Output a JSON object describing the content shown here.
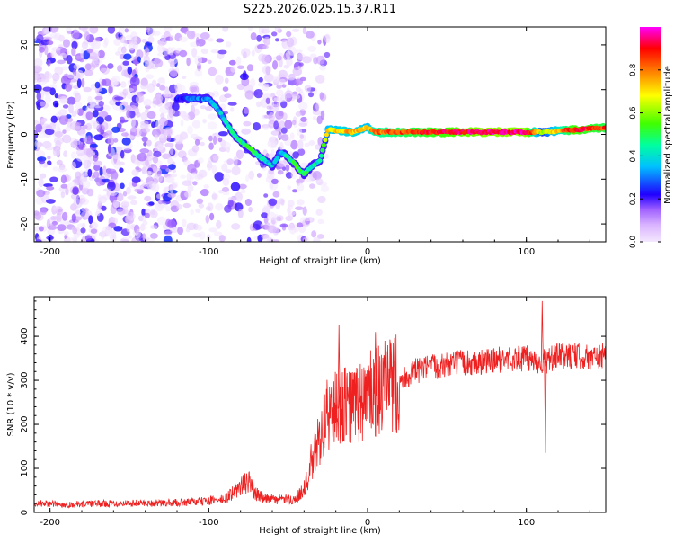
{
  "title": "S225.2026.025.15.37.R11",
  "chart_data": [
    {
      "type": "heatmap",
      "panel": "spectrogram",
      "title": "S225.2026.025.15.37.R11",
      "xlabel": "Height of straight line (km)",
      "ylabel": "Frequency (Hz)",
      "xlim": [
        -210,
        150
      ],
      "ylim": [
        -24,
        24
      ],
      "xticks": [
        -200,
        -100,
        0,
        100
      ],
      "yticks": [
        -20,
        -10,
        0,
        10,
        20
      ],
      "colorbar": {
        "label": "Normalized spectral amplitude",
        "range": [
          0,
          1
        ],
        "ticks": [
          "0.0",
          "0.2",
          "0.4",
          "0.6",
          "0.8"
        ],
        "colors": [
          "#f4e8ff",
          "#c98bff",
          "#8a2be2",
          "#0000ff",
          "#00ffff",
          "#00ff00",
          "#ffff00",
          "#ff0000",
          "#ff00ff"
        ]
      },
      "signal_track": [
        {
          "x": -120,
          "f": 8,
          "amp": 0.25
        },
        {
          "x": -100,
          "f": 8,
          "amp": 0.3
        },
        {
          "x": -95,
          "f": 6,
          "amp": 0.35
        },
        {
          "x": -88,
          "f": 2,
          "amp": 0.4
        },
        {
          "x": -82,
          "f": -1,
          "amp": 0.45
        },
        {
          "x": -75,
          "f": -3,
          "amp": 0.5
        },
        {
          "x": -68,
          "f": -5,
          "amp": 0.45
        },
        {
          "x": -60,
          "f": -7,
          "amp": 0.35
        },
        {
          "x": -55,
          "f": -4,
          "amp": 0.3
        },
        {
          "x": -50,
          "f": -5,
          "amp": 0.45
        },
        {
          "x": -45,
          "f": -7,
          "amp": 0.5
        },
        {
          "x": -40,
          "f": -9,
          "amp": 0.5
        },
        {
          "x": -35,
          "f": -7,
          "amp": 0.45
        },
        {
          "x": -30,
          "f": -6,
          "amp": 0.4
        },
        {
          "x": -25,
          "f": 1,
          "amp": 0.7
        },
        {
          "x": -10,
          "f": 0.5,
          "amp": 0.75
        },
        {
          "x": 0,
          "f": 1.5,
          "amp": 0.7
        },
        {
          "x": 5,
          "f": 0.5,
          "amp": 0.8
        },
        {
          "x": 25,
          "f": 0.5,
          "amp": 0.85
        },
        {
          "x": 50,
          "f": 0.5,
          "amp": 0.9
        },
        {
          "x": 75,
          "f": 0.5,
          "amp": 0.95
        },
        {
          "x": 100,
          "f": 0.5,
          "amp": 0.95
        },
        {
          "x": 110,
          "f": 0.5,
          "amp": 0.6
        },
        {
          "x": 130,
          "f": 1,
          "amp": 0.9
        },
        {
          "x": 150,
          "f": 1.5,
          "amp": 0.85
        }
      ]
    },
    {
      "type": "line",
      "panel": "snr",
      "xlabel": "Height of straight line (km)",
      "ylabel": "SNR (10 * v/v)",
      "xlim": [
        -210,
        150
      ],
      "ylim": [
        0,
        490
      ],
      "xticks": [
        -200,
        -100,
        0,
        100
      ],
      "yticks": [
        0,
        100,
        200,
        300,
        400
      ],
      "series": [
        {
          "name": "SNR",
          "color": "#ee2020",
          "points": [
            [
              -210,
              18
            ],
            [
              -190,
              15
            ],
            [
              -170,
              17
            ],
            [
              -150,
              18
            ],
            [
              -130,
              18
            ],
            [
              -110,
              20
            ],
            [
              -90,
              25
            ],
            [
              -80,
              50
            ],
            [
              -75,
              60
            ],
            [
              -70,
              35
            ],
            [
              -60,
              25
            ],
            [
              -45,
              25
            ],
            [
              -38,
              60
            ],
            [
              -32,
              150
            ],
            [
              -28,
              200
            ],
            [
              -25,
              220
            ],
            [
              -22,
              230
            ],
            [
              -15,
              240
            ],
            [
              -5,
              250
            ],
            [
              5,
              270
            ],
            [
              12,
              280
            ],
            [
              20,
              300
            ],
            [
              30,
              320
            ],
            [
              40,
              330
            ],
            [
              50,
              335
            ],
            [
              60,
              340
            ],
            [
              70,
              340
            ],
            [
              80,
              345
            ],
            [
              90,
              350
            ],
            [
              100,
              350
            ],
            [
              110,
              340
            ],
            [
              120,
              355
            ],
            [
              130,
              355
            ],
            [
              140,
              352
            ],
            [
              150,
              355
            ]
          ],
          "spikes": [
            [
              -18,
              425
            ],
            [
              5,
              410
            ],
            [
              110,
              480
            ],
            [
              112,
              135
            ]
          ]
        }
      ]
    }
  ]
}
